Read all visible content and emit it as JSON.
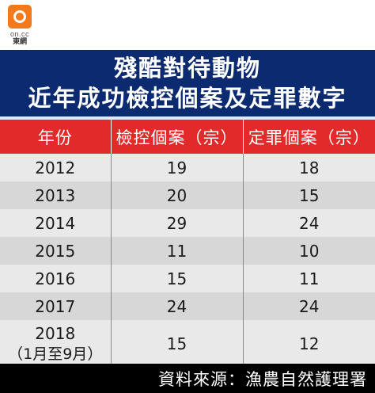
{
  "logo": {
    "domain": "on.cc",
    "name": "東網"
  },
  "title": {
    "line1": "殘酷對待動物",
    "line2": "近年成功檢控個案及定罪數字"
  },
  "table": {
    "headers": [
      "年份",
      "檢控個案（宗）",
      "定罪個案（宗）"
    ],
    "rows": [
      {
        "year": "2012",
        "year_note": "",
        "prosecuted": "19",
        "convicted": "18"
      },
      {
        "year": "2013",
        "year_note": "",
        "prosecuted": "20",
        "convicted": "15"
      },
      {
        "year": "2014",
        "year_note": "",
        "prosecuted": "29",
        "convicted": "24"
      },
      {
        "year": "2015",
        "year_note": "",
        "prosecuted": "11",
        "convicted": "10"
      },
      {
        "year": "2016",
        "year_note": "",
        "prosecuted": "15",
        "convicted": "11"
      },
      {
        "year": "2017",
        "year_note": "",
        "prosecuted": "24",
        "convicted": "24"
      },
      {
        "year": "2018",
        "year_note": "（1月至9月）",
        "prosecuted": "15",
        "convicted": "12"
      }
    ]
  },
  "source": "資料來源：漁農自然護理署",
  "colors": {
    "title_band": "#0b2a6f",
    "header_band": "#e32a2a",
    "row_light": "#e9e9e9",
    "row_dark": "#d7d7d7",
    "source_band": "#000000",
    "logo": "#f07a1c"
  },
  "chart_data": {
    "type": "table",
    "title": "殘酷對待動物 近年成功檢控個案及定罪數字",
    "columns": [
      "年份",
      "檢控個案（宗）",
      "定罪個案（宗）"
    ],
    "categories": [
      "2012",
      "2013",
      "2014",
      "2015",
      "2016",
      "2017",
      "2018（1月至9月）"
    ],
    "series": [
      {
        "name": "檢控個案（宗）",
        "values": [
          19,
          20,
          29,
          11,
          15,
          24,
          15
        ]
      },
      {
        "name": "定罪個案（宗）",
        "values": [
          18,
          15,
          24,
          10,
          11,
          24,
          12
        ]
      }
    ]
  }
}
